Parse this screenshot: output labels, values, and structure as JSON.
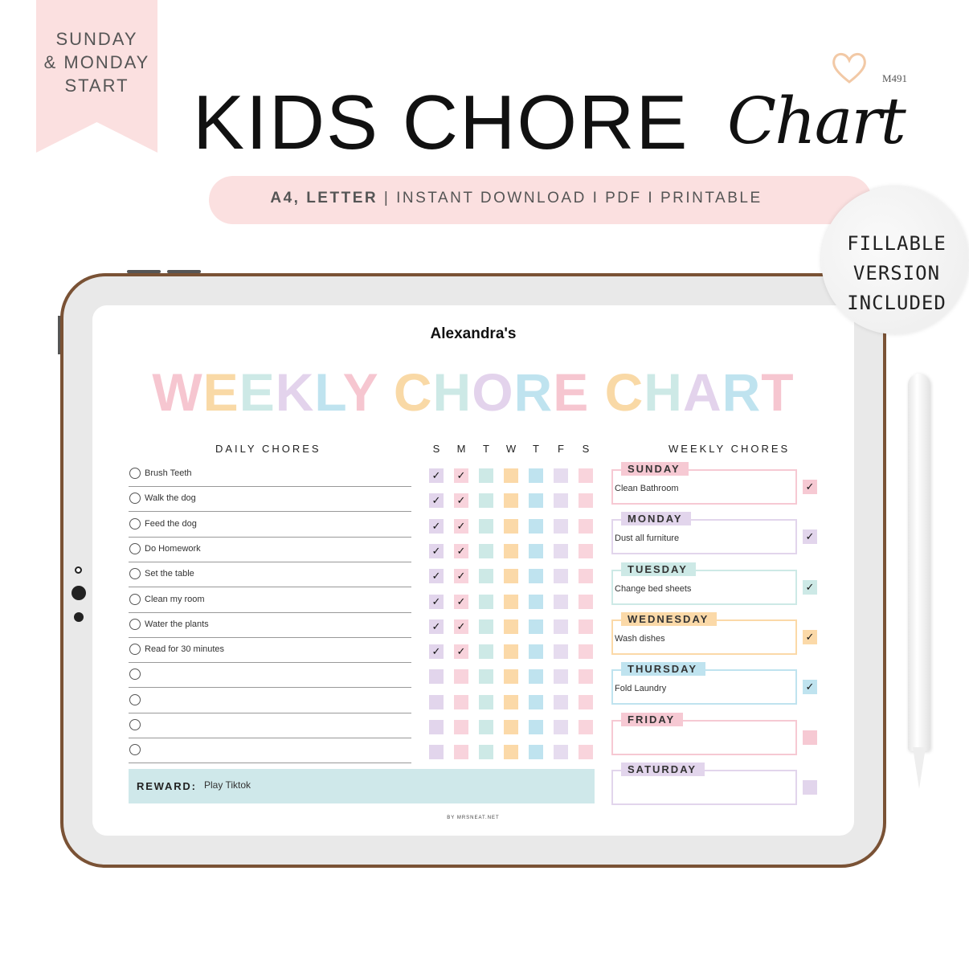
{
  "banner": {
    "ribbon_lines": [
      "SUNDAY",
      "& MONDAY",
      "START"
    ],
    "title": "KIDS CHORE",
    "title_script": "Chart",
    "product_code": "M491"
  },
  "subtitle": {
    "bold": "A4, LETTER",
    "rest": " | INSTANT DOWNLOAD I PDF I PRINTABLE"
  },
  "badge": {
    "lines": [
      "FILLABLE",
      "VERSION",
      "INCLUDED"
    ]
  },
  "chart": {
    "owner": "Alexandra's",
    "title": "WEEKLY CHORE CHART",
    "title_colors": [
      "#f6c6d0",
      "#f9d9a6",
      "#cde9e6",
      "#e3d3ec",
      "#bfe3ef"
    ],
    "daily_heading": "DAILY CHORES",
    "day_headers": [
      "S",
      "M",
      "T",
      "W",
      "T",
      "F",
      "S"
    ],
    "day_colors": [
      "#e2d5ec",
      "#f8d3dc",
      "#cde9e6",
      "#fbd9a8",
      "#bfe3ef",
      "#e6dcef",
      "#f9d4dc"
    ],
    "chores": [
      {
        "name": "Brush Teeth",
        "checks": [
          true,
          true,
          false,
          false,
          false,
          false,
          false
        ]
      },
      {
        "name": "Walk the dog",
        "checks": [
          true,
          true,
          false,
          false,
          false,
          false,
          false
        ]
      },
      {
        "name": "Feed the dog",
        "checks": [
          true,
          true,
          false,
          false,
          false,
          false,
          false
        ]
      },
      {
        "name": "Do Homework",
        "checks": [
          true,
          true,
          false,
          false,
          false,
          false,
          false
        ]
      },
      {
        "name": "Set the table",
        "checks": [
          true,
          true,
          false,
          false,
          false,
          false,
          false
        ]
      },
      {
        "name": "Clean my room",
        "checks": [
          true,
          true,
          false,
          false,
          false,
          false,
          false
        ]
      },
      {
        "name": "Water the plants",
        "checks": [
          true,
          true,
          false,
          false,
          false,
          false,
          false
        ]
      },
      {
        "name": "Read for 30 minutes",
        "checks": [
          true,
          true,
          false,
          false,
          false,
          false,
          false
        ]
      },
      {
        "name": "",
        "checks": [
          false,
          false,
          false,
          false,
          false,
          false,
          false
        ]
      },
      {
        "name": "",
        "checks": [
          false,
          false,
          false,
          false,
          false,
          false,
          false
        ]
      },
      {
        "name": "",
        "checks": [
          false,
          false,
          false,
          false,
          false,
          false,
          false
        ]
      },
      {
        "name": "",
        "checks": [
          false,
          false,
          false,
          false,
          false,
          false,
          false
        ]
      }
    ],
    "check_mark": "✓",
    "weekly_heading": "WEEKLY CHORES",
    "weekly": [
      {
        "day": "SUNDAY",
        "task": "Clean Bathroom",
        "done": true,
        "color": "#f6c9d3"
      },
      {
        "day": "MONDAY",
        "task": "Dust all furniture",
        "done": true,
        "color": "#e2d5ec"
      },
      {
        "day": "TUESDAY",
        "task": "Change bed sheets",
        "done": true,
        "color": "#cde9e6"
      },
      {
        "day": "WEDNESDAY",
        "task": "Wash dishes",
        "done": true,
        "color": "#fbd9a8"
      },
      {
        "day": "THURSDAY",
        "task": "Fold Laundry",
        "done": true,
        "color": "#bfe3ef"
      },
      {
        "day": "FRIDAY",
        "task": "",
        "done": false,
        "color": "#f6c9d3"
      },
      {
        "day": "SATURDAY",
        "task": "",
        "done": false,
        "color": "#e2d5ec"
      }
    ],
    "reward_label": "REWARD:",
    "reward": "Play Tiktok",
    "credit": "BY MRSNEAT.NET"
  }
}
